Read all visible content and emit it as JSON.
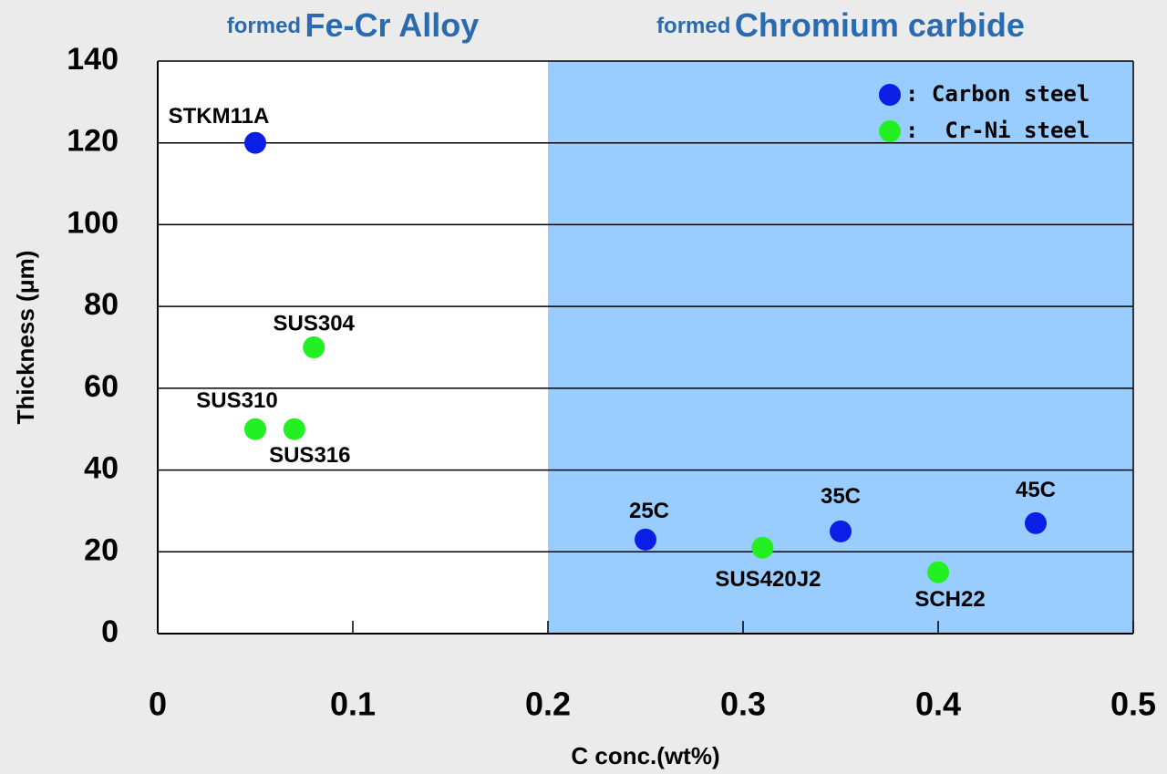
{
  "chart_data": {
    "type": "scatter",
    "xlabel": "C conc.(wt%)",
    "ylabel": "Thickness (μm)",
    "xlim": [
      0,
      0.5
    ],
    "ylim": [
      0,
      140
    ],
    "xticks": [
      0,
      0.1,
      0.2,
      0.3,
      0.4,
      0.5
    ],
    "yticks": [
      0,
      20,
      40,
      60,
      80,
      100,
      120,
      140
    ],
    "grid": true,
    "legend": "upper right",
    "regions": [
      {
        "xlim": [
          0,
          0.2
        ],
        "prefix": "formed",
        "label": "Fe-Cr Alloy"
      },
      {
        "xlim": [
          0.2,
          0.5
        ],
        "prefix": "formed",
        "label": "Chromium carbide",
        "color": "#99ccff"
      }
    ],
    "series": [
      {
        "name": ": Carbon steel",
        "color": "#0a1ee6",
        "x": [
          0.05,
          0.25,
          0.35,
          0.45
        ],
        "values": [
          120,
          23,
          25,
          27
        ],
        "labels": [
          "STKM11A",
          "25C",
          "35C",
          "45C"
        ]
      },
      {
        "name": ":  Cr-Ni steel",
        "color": "#22f022",
        "x": [
          0.08,
          0.05,
          0.07,
          0.31,
          0.4
        ],
        "values": [
          70,
          50,
          50,
          21,
          15
        ],
        "labels": [
          "SUS304",
          "SUS310",
          "SUS316",
          "SUS420J2",
          "SCH22"
        ]
      }
    ]
  }
}
